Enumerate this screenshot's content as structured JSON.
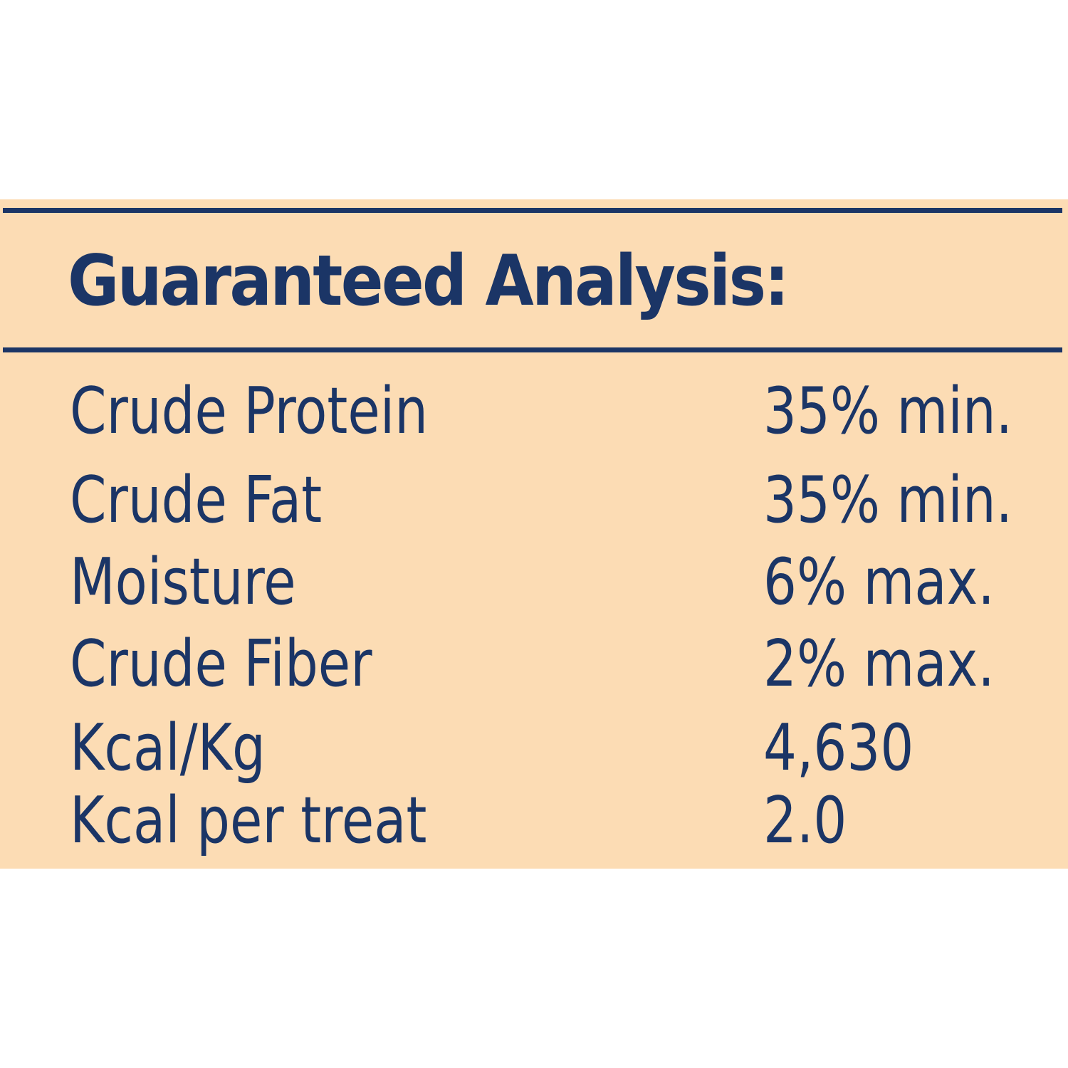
{
  "title": "Guaranteed Analysis:",
  "rows": [
    [
      "Crude Protein",
      "35% min."
    ],
    [
      "Crude Fat",
      "35% min."
    ],
    [
      "Moisture",
      "6% max."
    ],
    [
      "Crude Fiber",
      "2% max."
    ],
    [
      "Kcal/Kg",
      "4,630"
    ],
    [
      "Kcal per treat",
      "2.0"
    ]
  ]
}
